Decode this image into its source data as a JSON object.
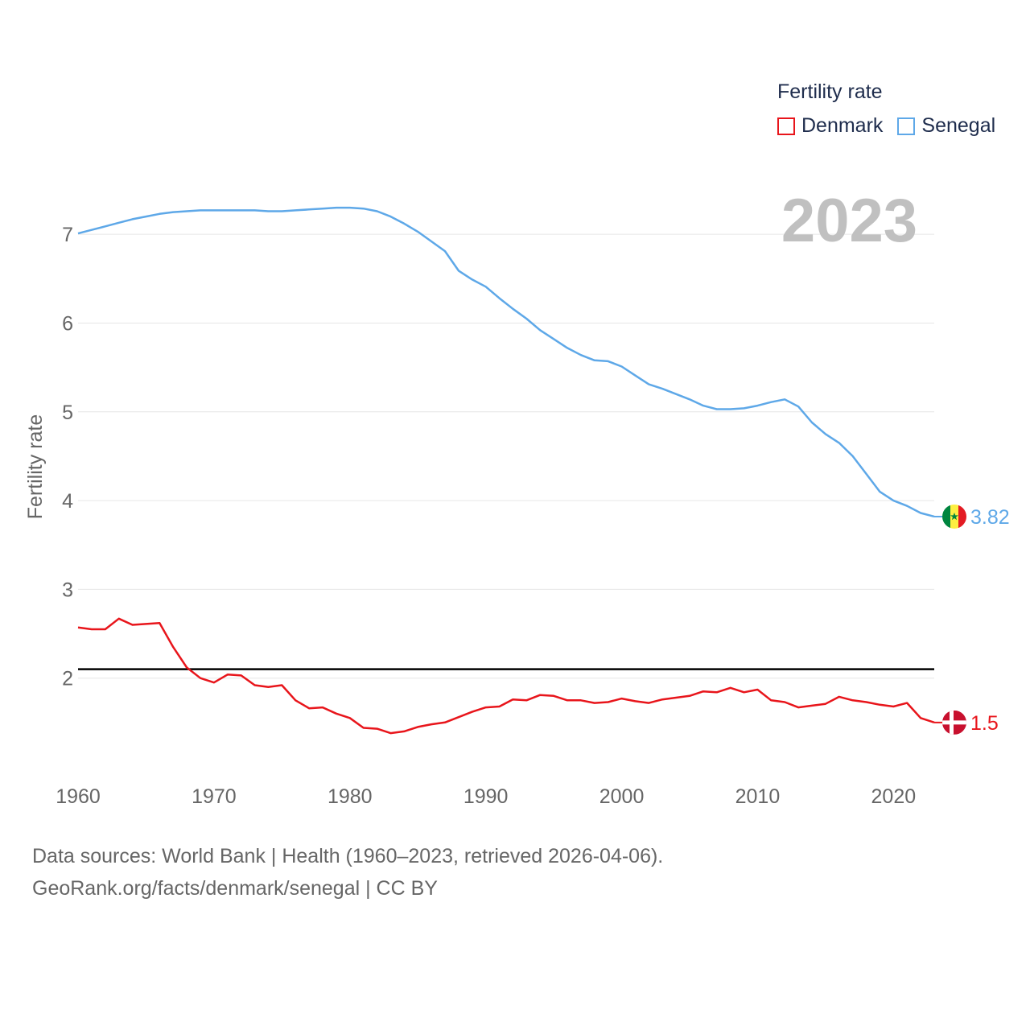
{
  "chart_data": {
    "type": "line",
    "ylabel": "Fertility rate",
    "year_label": "2023",
    "legend_title": "Fertility rate",
    "xlim": [
      1960,
      2023
    ],
    "ylim": [
      1.0,
      7.6
    ],
    "x_ticks": [
      1960,
      1970,
      1980,
      1990,
      2000,
      2010,
      2020
    ],
    "y_ticks": [
      2,
      3,
      4,
      5,
      6,
      7
    ],
    "reference_line": {
      "y": 2.1,
      "color": "#000000"
    },
    "x": [
      1960,
      1961,
      1962,
      1963,
      1964,
      1965,
      1966,
      1967,
      1968,
      1969,
      1970,
      1971,
      1972,
      1973,
      1974,
      1975,
      1976,
      1977,
      1978,
      1979,
      1980,
      1981,
      1982,
      1983,
      1984,
      1985,
      1986,
      1987,
      1988,
      1989,
      1990,
      1991,
      1992,
      1993,
      1994,
      1995,
      1996,
      1997,
      1998,
      1999,
      2000,
      2001,
      2002,
      2003,
      2004,
      2005,
      2006,
      2007,
      2008,
      2009,
      2010,
      2011,
      2012,
      2013,
      2014,
      2015,
      2016,
      2017,
      2018,
      2019,
      2020,
      2021,
      2022,
      2023
    ],
    "series": [
      {
        "name": "Denmark",
        "color": "#e8151b",
        "end_label": "1.5",
        "values": [
          2.57,
          2.55,
          2.55,
          2.67,
          2.6,
          2.61,
          2.62,
          2.35,
          2.12,
          2.0,
          1.95,
          2.04,
          2.03,
          1.92,
          1.9,
          1.92,
          1.75,
          1.66,
          1.67,
          1.6,
          1.55,
          1.44,
          1.43,
          1.38,
          1.4,
          1.45,
          1.48,
          1.5,
          1.56,
          1.62,
          1.67,
          1.68,
          1.76,
          1.75,
          1.81,
          1.8,
          1.75,
          1.75,
          1.72,
          1.73,
          1.77,
          1.74,
          1.72,
          1.76,
          1.78,
          1.8,
          1.85,
          1.84,
          1.89,
          1.84,
          1.87,
          1.75,
          1.73,
          1.67,
          1.69,
          1.71,
          1.79,
          1.75,
          1.73,
          1.7,
          1.68,
          1.72,
          1.55,
          1.5
        ]
      },
      {
        "name": "Senegal",
        "color": "#5ea8e8",
        "end_label": "3.82",
        "values": [
          7.01,
          7.05,
          7.09,
          7.13,
          7.17,
          7.2,
          7.23,
          7.25,
          7.26,
          7.27,
          7.27,
          7.27,
          7.27,
          7.27,
          7.26,
          7.26,
          7.27,
          7.28,
          7.29,
          7.3,
          7.3,
          7.29,
          7.26,
          7.2,
          7.12,
          7.03,
          6.92,
          6.81,
          6.59,
          6.49,
          6.41,
          6.28,
          6.16,
          6.05,
          5.92,
          5.82,
          5.72,
          5.64,
          5.58,
          5.57,
          5.51,
          5.41,
          5.31,
          5.26,
          5.2,
          5.14,
          5.07,
          5.03,
          5.03,
          5.04,
          5.07,
          5.11,
          5.14,
          5.06,
          4.88,
          4.75,
          4.65,
          4.5,
          4.3,
          4.1,
          4.0,
          3.94,
          3.86,
          3.82
        ]
      }
    ]
  },
  "footer": {
    "line1": "Data sources: World Bank | Health (1960–2023, retrieved 2026-04-06).",
    "line2": "GeoRank.org/facts/denmark/senegal | CC BY"
  }
}
